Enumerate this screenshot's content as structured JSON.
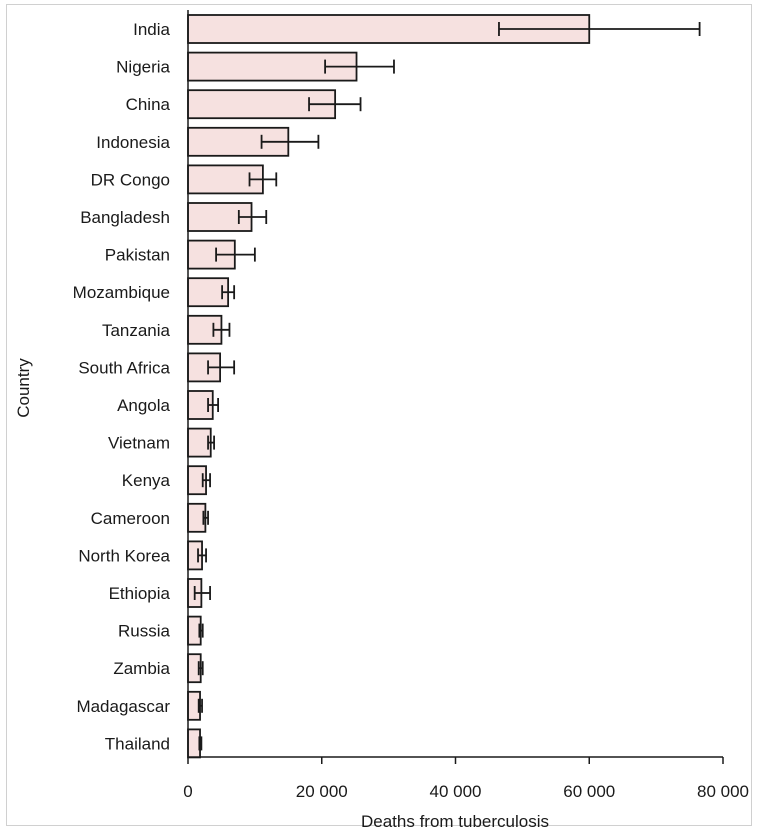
{
  "chart_data": {
    "type": "bar",
    "orientation": "horizontal",
    "title": "",
    "xlabel": "Deaths from tuberculosis",
    "ylabel": "Country",
    "xlim": [
      0,
      80000
    ],
    "xticks": [
      0,
      20000,
      40000,
      60000,
      80000
    ],
    "xtick_labels": [
      "0",
      "20 000",
      "40 000",
      "60 000",
      "80 000"
    ],
    "categories": [
      "India",
      "Nigeria",
      "China",
      "Indonesia",
      "DR Congo",
      "Bangladesh",
      "Pakistan",
      "Mozambique",
      "Tanzania",
      "South Africa",
      "Angola",
      "Vietnam",
      "Kenya",
      "Cameroon",
      "North Korea",
      "Ethiopia",
      "Russia",
      "Zambia",
      "Madagascar",
      "Thailand"
    ],
    "values": [
      60000,
      25200,
      22000,
      15000,
      11200,
      9500,
      7000,
      6000,
      5000,
      4800,
      3700,
      3400,
      2700,
      2600,
      2100,
      2000,
      1900,
      1900,
      1800,
      1800
    ],
    "error_low": [
      46500,
      20500,
      18100,
      11000,
      9200,
      7600,
      4200,
      5100,
      3800,
      3000,
      3000,
      3000,
      2200,
      2300,
      1500,
      1000,
      1700,
      1600,
      1600,
      1700
    ],
    "error_high": [
      76500,
      30800,
      25800,
      19500,
      13200,
      11700,
      10000,
      6900,
      6200,
      6900,
      4500,
      3900,
      3300,
      3000,
      2700,
      3300,
      2200,
      2200,
      2100,
      2000
    ],
    "bar_color": "#f6e1e0",
    "bar_edge_color": "#1a1a1a",
    "error_bar_color": "#1a1a1a",
    "grid": false,
    "legend": "none"
  }
}
